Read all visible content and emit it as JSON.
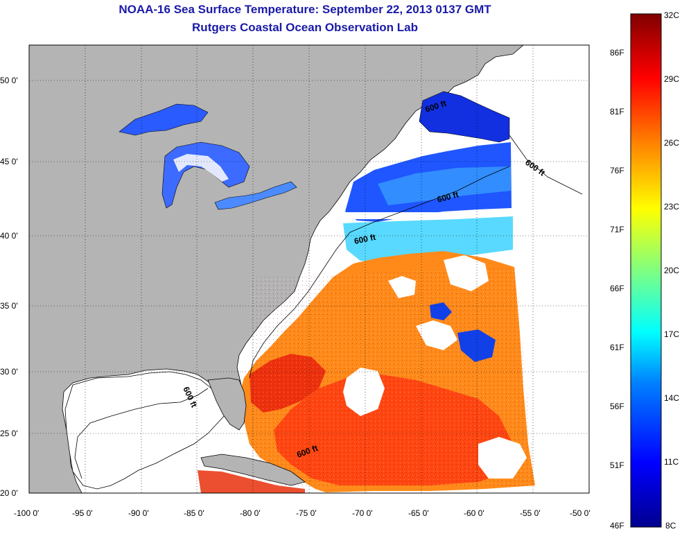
{
  "title": {
    "line1": "NOAA-16 Sea Surface Temperature:  September 22, 2013 0137 GMT",
    "line2": "Rutgers Coastal Ocean Observation Lab"
  },
  "axes": {
    "x_ticks": [
      "-100 0'",
      "-95 0'",
      "-90 0'",
      "-85 0'",
      "-80 0'",
      "-75 0'",
      "-70 0'",
      "-65 0'",
      "-60 0'",
      "-55 0'",
      "-50 0'"
    ],
    "y_ticks": [
      "50 0'",
      "45 0'",
      "40 0'",
      "35 0'",
      "30 0'",
      "25 0'",
      "20 0'"
    ]
  },
  "contour_labels": [
    "600 ft",
    "600 ft",
    "600 ft",
    "600 ft",
    "600 ft",
    "600 ft"
  ],
  "colorbar": {
    "celsius": [
      "32C",
      "29C",
      "26C",
      "23C",
      "20C",
      "17C",
      "14C",
      "11C",
      "8C"
    ],
    "fahrenheit": [
      "86F",
      "81F",
      "76F",
      "71F",
      "66F",
      "61F",
      "56F",
      "51F",
      "46F"
    ],
    "colors": [
      "#00008f",
      "#0000ff",
      "#0080ff",
      "#00ffff",
      "#80ff80",
      "#ffff00",
      "#ff8000",
      "#ff0000",
      "#800000"
    ]
  }
}
